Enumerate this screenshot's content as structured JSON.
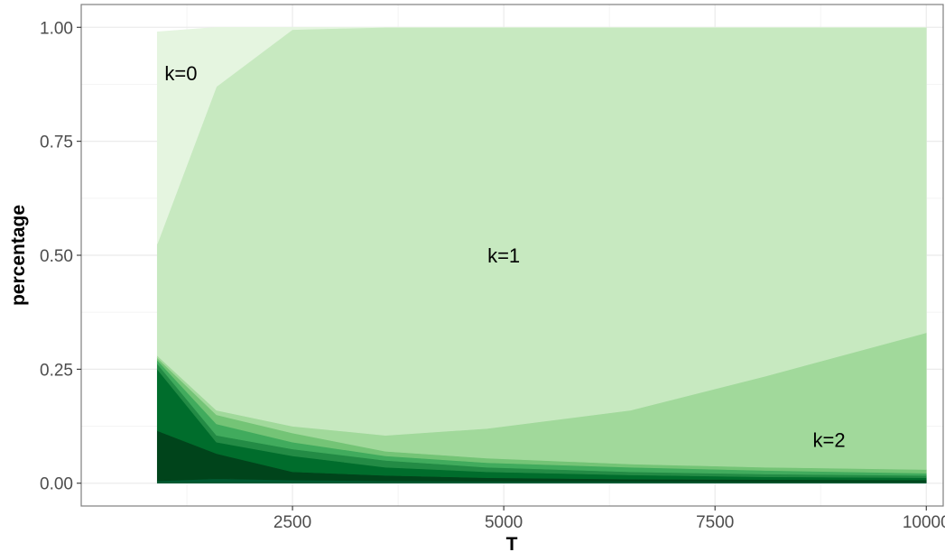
{
  "chart_data": {
    "type": "area",
    "stacked": true,
    "xlabel": "T",
    "ylabel": "percentage",
    "xlim": [
      0,
      10200
    ],
    "ylim": [
      -0.05,
      1.05
    ],
    "x_ticks": [
      2500,
      5000,
      7500,
      10000
    ],
    "x_tick_labels": [
      "2500",
      "5000",
      "7500",
      "10000"
    ],
    "y_ticks": [
      0,
      0.25,
      0.5,
      0.75,
      1.0
    ],
    "y_tick_labels": [
      "0.00",
      "0.25",
      "0.50",
      "0.75",
      "1.00"
    ],
    "grid": true,
    "x": [
      900,
      1600,
      2500,
      3600,
      4800,
      6500,
      8100,
      10000
    ],
    "boundaries": [
      [
        0.005,
        0.01,
        0.007,
        0.005,
        0.004,
        0.004,
        0.003,
        0.003
      ],
      [
        0.115,
        0.065,
        0.025,
        0.017,
        0.012,
        0.009,
        0.008,
        0.007
      ],
      [
        0.25,
        0.09,
        0.06,
        0.035,
        0.025,
        0.018,
        0.014,
        0.012
      ],
      [
        0.262,
        0.105,
        0.075,
        0.05,
        0.035,
        0.025,
        0.02,
        0.017
      ],
      [
        0.27,
        0.13,
        0.09,
        0.06,
        0.045,
        0.035,
        0.028,
        0.022
      ],
      [
        0.275,
        0.15,
        0.11,
        0.07,
        0.055,
        0.042,
        0.035,
        0.03
      ],
      [
        0.28,
        0.16,
        0.125,
        0.105,
        0.12,
        0.16,
        0.235,
        0.33
      ],
      [
        0.525,
        0.87,
        0.995,
        1.0,
        1.0,
        1.0,
        1.0,
        1.0
      ],
      [
        0.99,
        1.0,
        1.0,
        1.0,
        1.0,
        1.0,
        1.0,
        1.0
      ]
    ],
    "fill_colors": [
      "#005a32",
      "#00441b",
      "#006d2c",
      "#238b45",
      "#41ab5d",
      "#74c476",
      "#a1d99b",
      "#c7e9c0",
      "#e5f5e0"
    ],
    "annotations": [
      {
        "text": "k=0",
        "x": 1180,
        "y": 0.9
      },
      {
        "text": "k=1",
        "x": 5000,
        "y": 0.5
      },
      {
        "text": "k=2",
        "x": 8850,
        "y": 0.095
      }
    ]
  }
}
